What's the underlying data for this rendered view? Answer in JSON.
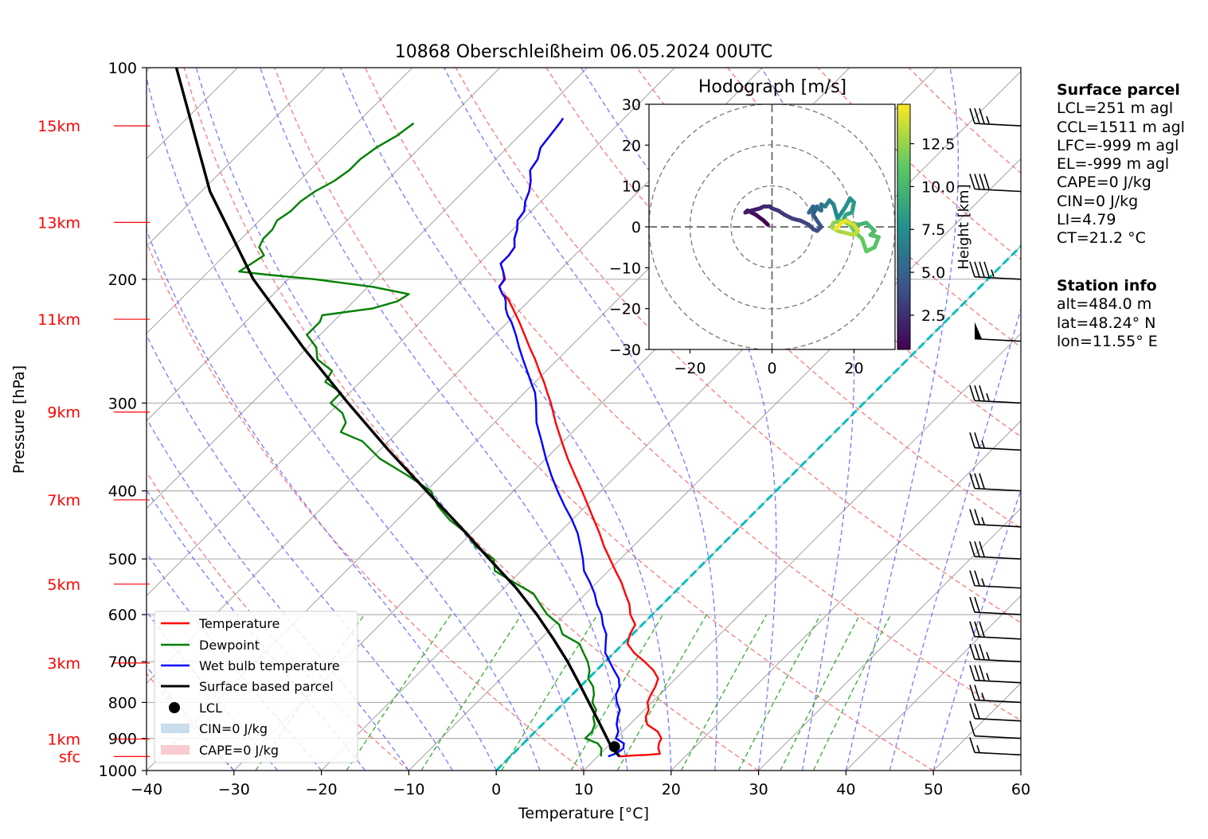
{
  "chart_data": {
    "type": "skew-t",
    "title": "10868 Oberschleißheim 06.05.2024 00UTC",
    "xlabel": "Temperature [°C]",
    "ylabel": "Pressure [hPa]",
    "xlim": [
      -40,
      60
    ],
    "ylim": [
      1000,
      100
    ],
    "x_ticks": [
      "−40",
      "−30",
      "−20",
      "−10",
      "0",
      "10",
      "20",
      "30",
      "40",
      "50",
      "60"
    ],
    "p_ticks": [
      "100",
      "200",
      "300",
      "400",
      "500",
      "600",
      "700",
      "800",
      "900",
      "1000"
    ],
    "height_labels": [
      {
        "label": "sfc",
        "p": 955
      },
      {
        "label": "1km",
        "p": 902
      },
      {
        "label": "3km",
        "p": 703
      },
      {
        "label": "5km",
        "p": 543
      },
      {
        "label": "7km",
        "p": 412
      },
      {
        "label": "9km",
        "p": 309
      },
      {
        "label": "11km",
        "p": 228
      },
      {
        "label": "13km",
        "p": 166
      },
      {
        "label": "15km",
        "p": 121
      }
    ],
    "legend": {
      "position": "lower-left",
      "entries": [
        "Temperature",
        "Dewpoint",
        "Wet bulb temperature",
        "Surface based parcel",
        "LCL",
        "CIN=0 J/kg",
        "CAPE=0 J/kg"
      ]
    },
    "series": [
      {
        "name": "Temperature",
        "color": "#ff0000",
        "p": [
          955,
          952,
          950,
          947,
          940,
          930,
          915,
          900,
          880,
          860,
          840,
          820,
          800,
          780,
          760,
          740,
          720,
          700,
          680,
          660,
          640,
          620,
          600,
          580,
          560,
          540,
          520,
          500,
          480,
          460,
          440,
          420,
          400,
          380,
          360,
          340,
          320,
          300,
          290,
          280,
          270,
          260,
          250,
          240,
          230,
          220,
          215,
          212,
          210,
          205,
          200,
          195,
          190,
          185,
          180,
          175,
          170,
          165,
          160,
          155,
          150,
          145,
          140,
          135,
          130,
          125,
          120,
          118
        ],
        "t": [
          12.5,
          14.0,
          15.5,
          16.8,
          16.5,
          16.0,
          15.5,
          15.2,
          14.0,
          12.0,
          11.0,
          10.5,
          9.5,
          9.0,
          8.6,
          8.0,
          6.5,
          4.5,
          2.3,
          0.5,
          -0.3,
          -0.8,
          -2.5,
          -3.8,
          -5.5,
          -7.2,
          -9.2,
          -11.2,
          -13.3,
          -15.3,
          -17.5,
          -19.8,
          -22.2,
          -24.8,
          -27.5,
          -30.2,
          -33.0,
          -35.8,
          -37.4,
          -39.0,
          -40.8,
          -42.6,
          -44.6,
          -46.6,
          -48.7,
          -51.0,
          -52.2,
          -53.0,
          -53.8,
          -55.0,
          -55.2,
          -56.3,
          -57.5,
          -57.5,
          -57.8,
          -58.8,
          -59.5,
          -60.5,
          -60.8,
          -61.8,
          -62.5,
          -63.5,
          -64.8,
          -65.2,
          -66.2,
          -66.5,
          -66.8,
          -67.0
        ]
      },
      {
        "name": "Dewpoint",
        "color": "#008000",
        "p": [
          955,
          945,
          930,
          915,
          900,
          880,
          860,
          840,
          820,
          800,
          780,
          760,
          740,
          720,
          700,
          680,
          660,
          640,
          620,
          600,
          580,
          560,
          540,
          520,
          500,
          480,
          460,
          440,
          420,
          400,
          380,
          360,
          340,
          330,
          320,
          310,
          300,
          290,
          280,
          270,
          260,
          250,
          240,
          230,
          225,
          220,
          215,
          210,
          205,
          200,
          197,
          195,
          190,
          185,
          180,
          175,
          170,
          165,
          160,
          155,
          150,
          145,
          140,
          135,
          130,
          125,
          120
        ],
        "t": [
          10.4,
          10.0,
          9.5,
          8.5,
          6.5,
          6.5,
          6.0,
          5.0,
          4.5,
          3.2,
          2.5,
          1.5,
          0.0,
          -0.8,
          -2.0,
          -3.5,
          -5.0,
          -8.0,
          -9.5,
          -12.0,
          -14.0,
          -16.0,
          -19.5,
          -23.0,
          -24.5,
          -28.0,
          -30.5,
          -34.0,
          -37.0,
          -39.5,
          -44.0,
          -49.0,
          -53.0,
          -56.5,
          -57.0,
          -58.5,
          -61.0,
          -61.0,
          -64.0,
          -64.5,
          -67.5,
          -69.0,
          -71.5,
          -71.5,
          -72.0,
          -67.0,
          -65.0,
          -64.5,
          -69.5,
          -77.0,
          -83.0,
          -86.5,
          -86.0,
          -85.5,
          -87.0,
          -87.5,
          -87.5,
          -88.0,
          -87.5,
          -87.5,
          -87.0,
          -86.0,
          -85.5,
          -85.5,
          -85.0,
          -84.0,
          -83.5
        ]
      },
      {
        "name": "Wet bulb temperature",
        "color": "#0000ff",
        "p": [
          955,
          945,
          930,
          915,
          900,
          880,
          860,
          840,
          820,
          800,
          780,
          760,
          740,
          720,
          700,
          680,
          660,
          640,
          620,
          600,
          580,
          560,
          540,
          520,
          500,
          480,
          460,
          440,
          420,
          400,
          380,
          360,
          340,
          320,
          300,
          290,
          280,
          270,
          260,
          250,
          240,
          230,
          225,
          220,
          215,
          212,
          210,
          205,
          200,
          195,
          190,
          185,
          180,
          175,
          170,
          165,
          160,
          155,
          150,
          145,
          140,
          135,
          130,
          125,
          120,
          118
        ],
        "t": [
          11.2,
          11.8,
          12.0,
          11.5,
          10.0,
          9.5,
          8.5,
          7.8,
          7.2,
          6.0,
          5.0,
          4.5,
          3.5,
          2.0,
          0.5,
          -1.0,
          -2.0,
          -3.0,
          -4.5,
          -5.8,
          -7.5,
          -9.0,
          -10.8,
          -12.8,
          -14.3,
          -16.0,
          -17.8,
          -20.0,
          -22.5,
          -25.0,
          -27.5,
          -30.0,
          -32.5,
          -35.2,
          -37.5,
          -38.8,
          -40.5,
          -42.2,
          -44.0,
          -45.8,
          -47.6,
          -49.6,
          -50.8,
          -51.8,
          -52.6,
          -53.2,
          -53.8,
          -55.0,
          -55.3,
          -56.3,
          -57.5,
          -57.5,
          -57.8,
          -58.8,
          -59.5,
          -60.5,
          -60.8,
          -61.8,
          -62.5,
          -63.5,
          -64.8,
          -65.2,
          -66.2,
          -66.5,
          -66.8,
          -67.0
        ]
      },
      {
        "name": "Surface based parcel",
        "color": "#000000",
        "p": [
          955,
          930,
          900,
          850,
          800,
          750,
          700,
          650,
          600,
          550,
          500,
          450,
          400,
          350,
          300,
          250,
          200,
          150,
          100
        ],
        "t": [
          12.5,
          10.7,
          9.0,
          6.0,
          2.8,
          -0.6,
          -4.3,
          -8.5,
          -13.2,
          -18.6,
          -25.0,
          -32.0,
          -40.0,
          -49.0,
          -59.0,
          -70.5,
          -84.0,
          -99.0,
          -117.0
        ]
      }
    ],
    "lcl": {
      "p": 925,
      "t": 10.8
    },
    "zero_isotherm_line": {
      "color": "#00bfbf",
      "t": 0
    },
    "hodograph": {
      "title": "Hodograph [m/s]",
      "xlim": [
        -30,
        30
      ],
      "ylim": [
        -30,
        30
      ],
      "x_ticks": [
        "−20",
        "0",
        "20"
      ],
      "y_ticks": [
        "30",
        "20",
        "10",
        "0",
        "−10",
        "−20",
        "−30"
      ],
      "rings": [
        10,
        20,
        30
      ],
      "colorbar": {
        "label": "Height [km]",
        "ticks": [
          "2.5",
          "5.0",
          "7.5",
          "10.0",
          "12.5"
        ],
        "range": [
          0.5,
          14.8
        ]
      },
      "u": [
        -1,
        -2,
        -4,
        -6,
        -6.5,
        -5,
        -3,
        -2,
        -0.5,
        0,
        1.5,
        3,
        5,
        7,
        9,
        10,
        11,
        12,
        10,
        11,
        9,
        10,
        12,
        12,
        13,
        14,
        15,
        16,
        18,
        19,
        20,
        19.5,
        18,
        17.5,
        19,
        21,
        23,
        25,
        24,
        26,
        25,
        23,
        22,
        20,
        19,
        17,
        15,
        14.5,
        16,
        18,
        20,
        21,
        20,
        18,
        17,
        15.5
      ],
      "v": [
        0.5,
        1.5,
        3,
        4,
        3.5,
        4,
        4.5,
        5,
        5,
        4.5,
        4,
        3,
        2,
        1.5,
        0.5,
        -0.5,
        -1,
        0,
        3,
        5,
        3.5,
        5,
        4,
        5.5,
        5,
        6.5,
        5.5,
        2,
        5,
        7,
        6,
        3.5,
        3,
        2,
        1,
        0.5,
        1,
        -1,
        -2,
        -2.5,
        -5,
        -6,
        -3,
        -1,
        0.5,
        1.5,
        1,
        0,
        -1,
        -1.5,
        -2,
        -1,
        0.5,
        1.5,
        1,
        -0.5
      ],
      "h": [
        0.5,
        0.8,
        1.0,
        1.3,
        1.6,
        1.8,
        2.0,
        2.2,
        2.4,
        2.6,
        2.8,
        3.0,
        3.2,
        3.4,
        3.6,
        3.8,
        4.0,
        4.3,
        4.6,
        5.0,
        5.3,
        5.6,
        5.9,
        6.2,
        6.5,
        6.8,
        7.1,
        7.4,
        7.7,
        8.0,
        8.3,
        8.6,
        8.9,
        9.2,
        9.5,
        9.8,
        10.1,
        10.4,
        10.6,
        10.8,
        11.0,
        11.2,
        11.4,
        11.6,
        11.8,
        12.0,
        12.3,
        12.6,
        12.9,
        13.2,
        13.5,
        13.8,
        14.0,
        14.3,
        14.6,
        14.8
      ]
    },
    "wind_barbs": [
      {
        "p": 121,
        "knots": 35
      },
      {
        "p": 150,
        "knots": 40
      },
      {
        "p": 200,
        "knots": 45
      },
      {
        "p": 245,
        "knots": 50
      },
      {
        "p": 300,
        "knots": 35
      },
      {
        "p": 350,
        "knots": 25
      },
      {
        "p": 400,
        "knots": 30
      },
      {
        "p": 450,
        "knots": 25
      },
      {
        "p": 500,
        "knots": 30
      },
      {
        "p": 550,
        "knots": 25
      },
      {
        "p": 600,
        "knots": 20
      },
      {
        "p": 650,
        "knots": 30
      },
      {
        "p": 700,
        "knots": 35
      },
      {
        "p": 750,
        "knots": 35
      },
      {
        "p": 800,
        "knots": 25
      },
      {
        "p": 850,
        "knots": 20
      },
      {
        "p": 900,
        "knots": 10
      },
      {
        "p": 950,
        "knots": 15
      }
    ]
  },
  "surface_parcel": {
    "header": "Surface parcel",
    "lcl": "LCL=251 m agl",
    "ccl": "CCL=1511 m agl",
    "lfc": "LFC=-999 m agl",
    "el": "EL=-999 m agl",
    "cape": "CAPE=0 J/kg",
    "cin": "CIN=0 J/kg",
    "li": "LI=4.79",
    "ct": "CT=21.2 °C"
  },
  "station_info": {
    "header": "Station info",
    "alt": "alt=484.0 m",
    "lat": "lat=48.24° N",
    "lon": "lon=11.55° E"
  }
}
